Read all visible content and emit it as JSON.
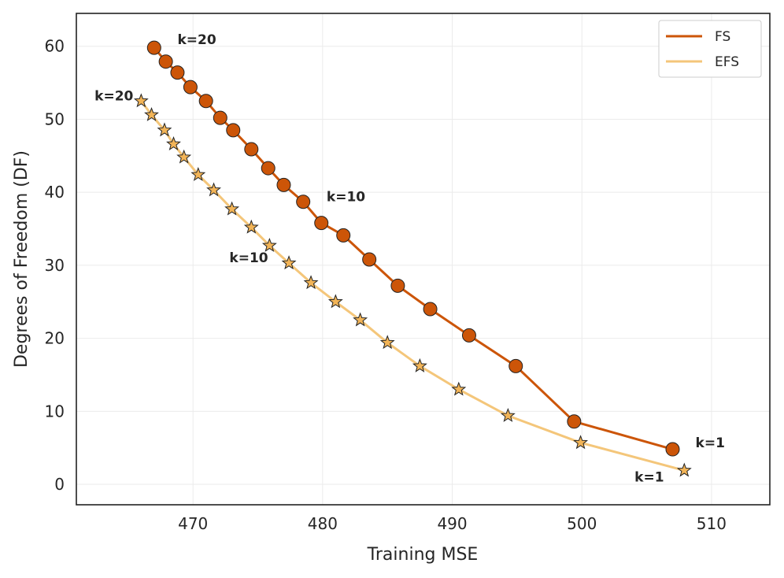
{
  "colors": {
    "fs": "#cc5508",
    "efs": "#f4c67a",
    "star_fill": "#f2b457",
    "edge": "#222222",
    "frame": "#222222"
  },
  "chart_data": {
    "type": "line",
    "xlabel": "Training MSE",
    "ylabel": "Degrees of Freedom (DF)",
    "xlim": [
      461,
      514.5
    ],
    "ylim": [
      -2.8,
      64.5
    ],
    "xticks": [
      470,
      480,
      490,
      500,
      510
    ],
    "yticks": [
      0,
      10,
      20,
      30,
      40,
      50,
      60
    ],
    "grid": true,
    "legend_position": "top-right",
    "series": [
      {
        "name": "FS",
        "marker": "circle",
        "x": [
          507.0,
          499.4,
          494.9,
          491.3,
          488.3,
          485.8,
          483.6,
          481.6,
          479.9,
          478.5,
          477.0,
          475.8,
          474.5,
          473.1,
          472.1,
          471.0,
          469.8,
          468.8,
          467.9,
          467.0
        ],
        "y": [
          4.8,
          8.6,
          16.2,
          20.4,
          24.0,
          27.2,
          30.8,
          34.1,
          35.8,
          38.7,
          41.0,
          43.3,
          45.9,
          48.5,
          50.2,
          52.5,
          54.4,
          56.4,
          57.9,
          59.8
        ]
      },
      {
        "name": "EFS",
        "marker": "star",
        "x": [
          507.9,
          499.9,
          494.3,
          490.5,
          487.5,
          485.0,
          482.9,
          481.0,
          479.1,
          477.4,
          475.9,
          474.5,
          473.0,
          471.6,
          470.4,
          469.3,
          468.5,
          467.8,
          466.8,
          466.0
        ],
        "y": [
          1.9,
          5.7,
          9.4,
          13.0,
          16.2,
          19.4,
          22.5,
          25.0,
          27.6,
          30.3,
          32.7,
          35.2,
          37.7,
          40.3,
          42.4,
          44.8,
          46.6,
          48.5,
          50.6,
          52.5
        ]
      }
    ],
    "annotations": [
      {
        "text": "k=20",
        "x": 468.8,
        "y": 60.3,
        "anchor": "start"
      },
      {
        "text": "k=20",
        "x": 463.9,
        "y": 52.6,
        "anchor": "middle"
      },
      {
        "text": "k=10",
        "x": 481.8,
        "y": 38.8,
        "anchor": "middle"
      },
      {
        "text": "k=10",
        "x": 474.3,
        "y": 30.4,
        "anchor": "middle"
      },
      {
        "text": "k=1",
        "x": 509.9,
        "y": 5.1,
        "anchor": "middle"
      },
      {
        "text": "k=1",
        "x": 505.2,
        "y": 0.4,
        "anchor": "middle"
      }
    ]
  }
}
